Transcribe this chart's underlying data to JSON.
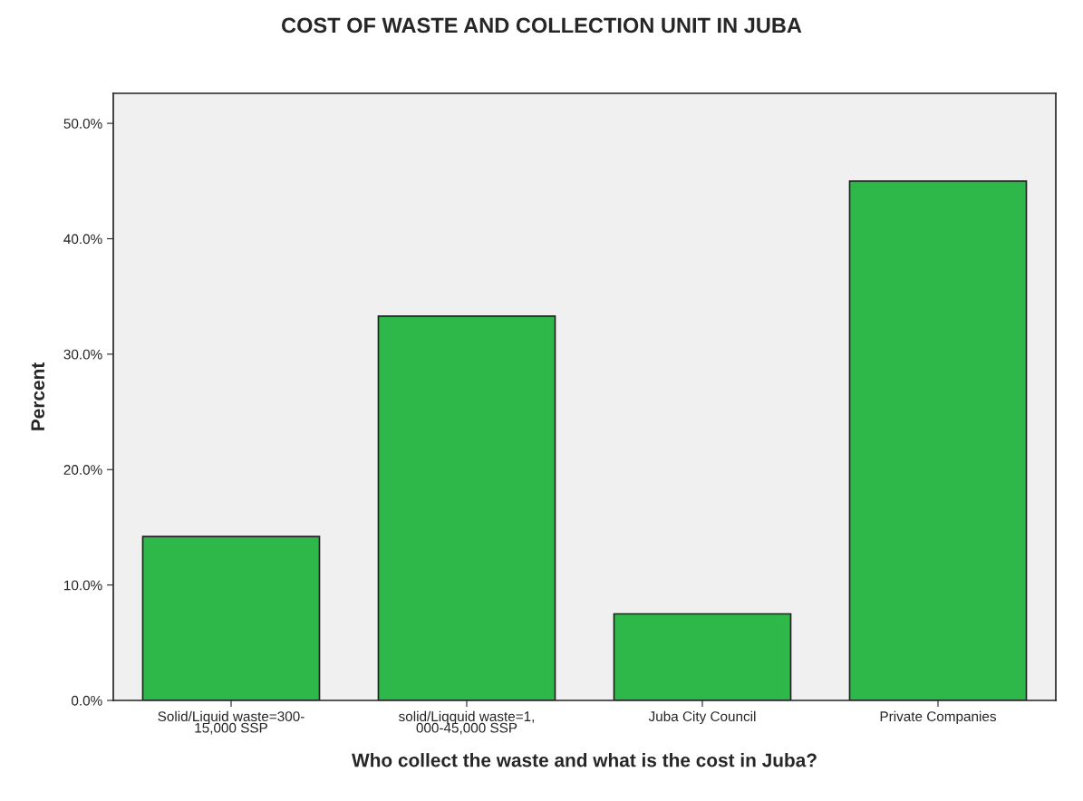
{
  "chart_data": {
    "type": "bar",
    "title": "COST OF WASTE AND COLLECTION UNIT IN JUBA",
    "xlabel": "Who collect the waste and what is the cost in Juba?",
    "ylabel": "Percent",
    "categories": [
      "Solid/Liquid waste=300-\n15,000 SSP",
      "solid/Liqquid waste=1,\n000-45,000 SSP",
      "Juba City Council",
      "Private Companies"
    ],
    "values": [
      14.2,
      33.3,
      7.5,
      45.0
    ],
    "color": "#2eb84a",
    "ylim": [
      0,
      52.6
    ],
    "yticks": [
      {
        "value": 0,
        "label": "0.0%"
      },
      {
        "value": 10,
        "label": "10.0%"
      },
      {
        "value": 20,
        "label": "20.0%"
      },
      {
        "value": 30,
        "label": "30.0%"
      },
      {
        "value": 40,
        "label": "40.0%"
      },
      {
        "value": 50,
        "label": "50.0%"
      }
    ],
    "grid": false,
    "legend": false
  }
}
